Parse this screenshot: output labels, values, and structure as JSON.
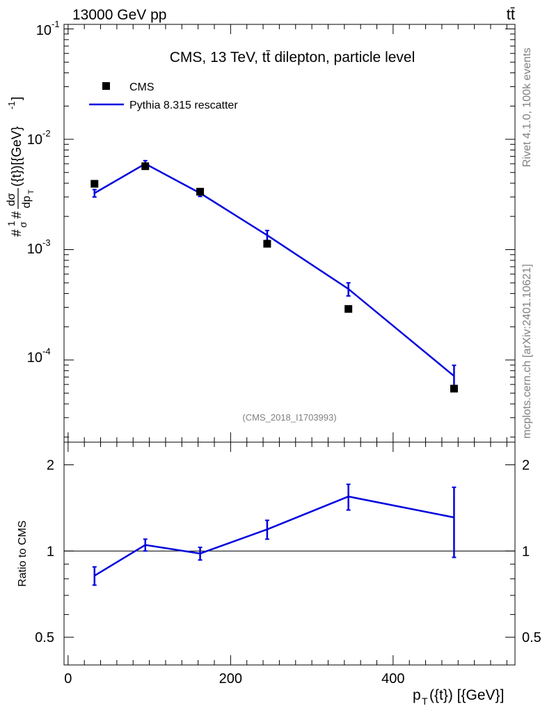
{
  "header": {
    "left": "13000 GeV pp",
    "right": "tt̄"
  },
  "side": {
    "rivet": "Rivet 4.1.0,  100k events",
    "mcplots": "mcplots.cern.ch [arXiv:2401.10621]"
  },
  "colors": {
    "data": "#000000",
    "mc": "#0000dd",
    "watermark": "#808080"
  },
  "chart_data": [
    {
      "type": "scatter",
      "title": "CMS, 13 TeV, tt̄ dilepton, particle level",
      "watermark": "(CMS_2018_I1703993)",
      "ylabel": "#frac{1}{#sigma}#frac{d#sigma}{dp_{T}({t})}[{GeV}^{-1}]",
      "ylabel_parts": {
        "hash": "#",
        "frac1": "1",
        "sigma": "σ",
        "dsigma": "dσ",
        "den": "dp",
        "sub": "T",
        "suffix": "({t})[{GeV}",
        "sup": "-1",
        "close": "]"
      },
      "yscale": "log",
      "ylim": [
        1.8e-05,
        0.11
      ],
      "xlim": [
        -5,
        550
      ],
      "yticks": [
        {
          "value": 0.1,
          "base": "10",
          "exp": "-1"
        },
        {
          "value": 0.01,
          "base": "10",
          "exp": "-2"
        },
        {
          "value": 0.001,
          "base": "10",
          "exp": "-3"
        },
        {
          "value": 0.0001,
          "base": "10",
          "exp": "-4"
        }
      ],
      "legend": {
        "placement": "top-left",
        "entries": [
          "CMS",
          "Pythia 8.315 rescatter"
        ]
      },
      "series": [
        {
          "name": "CMS",
          "style": "markers",
          "x": [
            32.5,
            95,
            162.5,
            245,
            345,
            475
          ],
          "y": [
            0.00395,
            0.0057,
            0.00335,
            0.00113,
            0.00029,
            5.5e-05
          ]
        },
        {
          "name": "Pythia 8.315 rescatter",
          "style": "line",
          "x": [
            32.5,
            95,
            162.5,
            245,
            345,
            475
          ],
          "y": [
            0.00325,
            0.006,
            0.00325,
            0.00135,
            0.00044,
            7.15e-05
          ],
          "err": [
            0.00025,
            0.0004,
            0.00022,
            0.00014,
            6e-05,
            1.8e-05
          ]
        }
      ]
    },
    {
      "type": "line",
      "ylabel": "Ratio to CMS",
      "xlabel": "p_{T}({t}) [{GeV}]",
      "xlabel_parts": {
        "p": "p",
        "sub": "T",
        "rest": "({t}) [{GeV}]"
      },
      "yscale": "log",
      "ylim": [
        0.4,
        2.4
      ],
      "xlim": [
        -5,
        550
      ],
      "yticks": [
        {
          "value": 0.5,
          "label": "0.5"
        },
        {
          "value": 1,
          "label": "1"
        },
        {
          "value": 2,
          "label": "2"
        }
      ],
      "xticks": [
        {
          "value": 0,
          "label": "0"
        },
        {
          "value": 200,
          "label": "200"
        },
        {
          "value": 400,
          "label": "400"
        }
      ],
      "reference": 1,
      "series": [
        {
          "name": "Pythia 8.315 rescatter / CMS",
          "x": [
            32.5,
            95,
            162.5,
            245,
            345,
            475
          ],
          "y": [
            0.82,
            1.05,
            0.98,
            1.19,
            1.55,
            1.31
          ],
          "err": [
            0.06,
            0.05,
            0.05,
            0.09,
            0.16,
            0.36
          ]
        }
      ]
    }
  ]
}
